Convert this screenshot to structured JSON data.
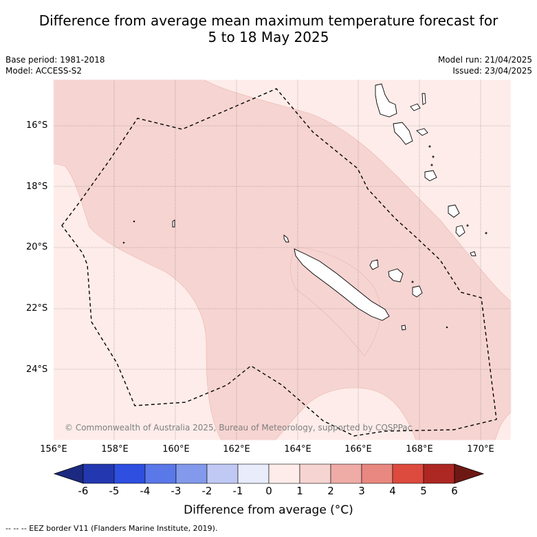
{
  "title_line1": "Difference from average mean maximum temperature forecast for",
  "title_line2": "5 to 18 May 2025",
  "base_period": "Base period: 1981-2018",
  "model": "Model: ACCESS-S2",
  "model_run": "Model run: 21/04/2025",
  "issued": "Issued: 23/04/2025",
  "copyright": "© Commonwealth of Australia 2025, Bureau of Meteorology, supported by COSPPac",
  "lat_labels": [
    "16°S",
    "18°S",
    "20°S",
    "22°S",
    "24°S"
  ],
  "lon_labels": [
    "156°E",
    "158°E",
    "160°E",
    "162°E",
    "164°E",
    "166°E",
    "168°E",
    "170°E"
  ],
  "colorbar": {
    "ticks": [
      "-6",
      "-5",
      "-4",
      "-3",
      "-2",
      "-1",
      "0",
      "1",
      "2",
      "3",
      "4",
      "5",
      "6"
    ],
    "colors": [
      "#1b2a80",
      "#2338b0",
      "#2f4fe0",
      "#5a78e8",
      "#8299ec",
      "#c0c9f4",
      "#e8ecfb",
      "#fdece9",
      "#f6d4d1",
      "#efaba6",
      "#e88880",
      "#dd4a3e",
      "#ad2723",
      "#6e1814"
    ],
    "label": "Difference from average (°C)"
  },
  "footer": "-- -- -- EEZ border V11 (Flanders Marine Institute, 2019).",
  "legend_colors": {
    "zero_to_one": "#fdece9",
    "one_to_two": "#f6d4d1"
  }
}
